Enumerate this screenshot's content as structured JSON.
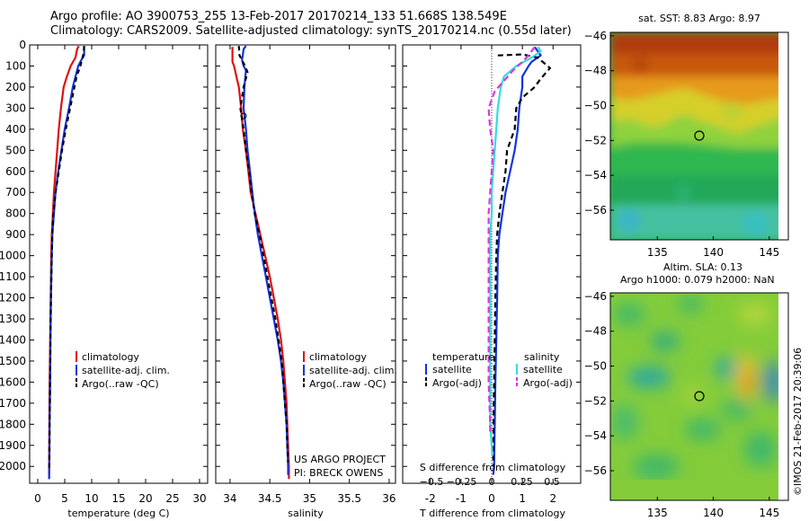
{
  "header": {
    "line1": "Argo profile: AO 3900753_255 13-Feb-2017 20170214_133 51.668S 138.549E",
    "line2": "Climatology: CARS2009. Satellite-adjusted climatology: synTS_20170214.nc (0.55d later)"
  },
  "colors": {
    "climatology": "#dd1111",
    "satellite": "#1133dd",
    "argo": "#000000",
    "cyan": "#33dddd",
    "magenta": "#dd33dd"
  },
  "chart_data": [
    {
      "type": "line",
      "xlabel": "temperature (deg C)",
      "ylabel": "",
      "xlim": [
        -1.5,
        31.5
      ],
      "ylim": [
        2080,
        0
      ],
      "xticks": [
        0,
        5,
        10,
        15,
        20,
        25,
        30
      ],
      "yticks": [
        0,
        100,
        200,
        300,
        400,
        500,
        600,
        700,
        800,
        900,
        1000,
        1100,
        1200,
        1300,
        1400,
        1500,
        1600,
        1700,
        1800,
        1900,
        2000
      ],
      "legend": {
        "items": [
          "climatology",
          "satellite-adj. clim.",
          "Argo(..raw -QC)"
        ],
        "placement": "lower-right"
      },
      "series": [
        {
          "name": "climatology",
          "color": "#dd1111",
          "dash": "",
          "points": [
            [
              7.6,
              5
            ],
            [
              7.3,
              20
            ],
            [
              7.0,
              60
            ],
            [
              6.1,
              100
            ],
            [
              5.4,
              150
            ],
            [
              4.8,
              200
            ],
            [
              4.3,
              300
            ],
            [
              3.9,
              400
            ],
            [
              3.6,
              500
            ],
            [
              3.3,
              600
            ],
            [
              3.0,
              700
            ],
            [
              2.8,
              800
            ],
            [
              2.6,
              900
            ],
            [
              2.5,
              1000
            ],
            [
              2.4,
              1200
            ],
            [
              2.3,
              1400
            ],
            [
              2.2,
              1600
            ],
            [
              2.15,
              1800
            ],
            [
              2.1,
              2000
            ],
            [
              2.1,
              2060
            ]
          ]
        },
        {
          "name": "satellite-adj. clim.",
          "color": "#1133dd",
          "dash": "",
          "points": [
            [
              8.6,
              5
            ],
            [
              8.6,
              50
            ],
            [
              8.0,
              75
            ],
            [
              7.5,
              100
            ],
            [
              7.0,
              150
            ],
            [
              6.5,
              200
            ],
            [
              5.8,
              300
            ],
            [
              5.0,
              400
            ],
            [
              4.4,
              500
            ],
            [
              3.8,
              600
            ],
            [
              3.3,
              700
            ],
            [
              3.0,
              800
            ],
            [
              2.7,
              900
            ],
            [
              2.6,
              1000
            ],
            [
              2.45,
              1200
            ],
            [
              2.35,
              1400
            ],
            [
              2.3,
              1600
            ],
            [
              2.2,
              1800
            ],
            [
              2.15,
              2000
            ],
            [
              2.1,
              2060
            ]
          ]
        },
        {
          "name": "Argo(..raw -QC)",
          "color": "#000000",
          "dash": "5,4",
          "points": [
            [
              8.6,
              5
            ],
            [
              8.5,
              40
            ],
            [
              8.2,
              70
            ],
            [
              7.9,
              100
            ],
            [
              7.2,
              150
            ],
            [
              6.8,
              200
            ],
            [
              6.0,
              300
            ],
            [
              5.2,
              400
            ],
            [
              4.5,
              500
            ],
            [
              3.9,
              600
            ],
            [
              3.3,
              700
            ],
            [
              2.9,
              800
            ],
            [
              2.7,
              900
            ],
            [
              2.6,
              1000
            ],
            [
              2.45,
              1200
            ],
            [
              2.35,
              1400
            ],
            [
              2.3,
              1600
            ],
            [
              2.2,
              1800
            ],
            [
              2.15,
              2000
            ],
            [
              2.1,
              2020
            ]
          ]
        }
      ]
    },
    {
      "type": "line",
      "xlabel": "salinity",
      "ylabel": "",
      "xlim": [
        33.82,
        36.08
      ],
      "ylim": [
        2080,
        0
      ],
      "xticks": [
        34,
        34.5,
        35,
        35.5,
        36
      ],
      "xtick_labels": [
        "34",
        "34.5",
        "35",
        "35.5",
        "36"
      ],
      "legend": {
        "items": [
          "climatology",
          "satellite-adj. clim.",
          "Argo(..raw -QC)"
        ],
        "placement": "lower-right"
      },
      "annotations": [
        "US ARGO PROJECT",
        "PI: BRECK OWENS"
      ],
      "series": [
        {
          "name": "climatology",
          "color": "#dd1111",
          "dash": "",
          "points": [
            [
              34.03,
              10
            ],
            [
              34.03,
              80
            ],
            [
              34.05,
              100
            ],
            [
              34.08,
              150
            ],
            [
              34.11,
              200
            ],
            [
              34.14,
              300
            ],
            [
              34.16,
              400
            ],
            [
              34.2,
              500
            ],
            [
              34.23,
              600
            ],
            [
              34.26,
              700
            ],
            [
              34.32,
              800
            ],
            [
              34.38,
              900
            ],
            [
              34.44,
              1000
            ],
            [
              34.5,
              1100
            ],
            [
              34.55,
              1200
            ],
            [
              34.6,
              1300
            ],
            [
              34.64,
              1400
            ],
            [
              34.67,
              1500
            ],
            [
              34.69,
              1600
            ],
            [
              34.71,
              1700
            ],
            [
              34.72,
              1800
            ],
            [
              34.73,
              1900
            ],
            [
              34.74,
              2000
            ],
            [
              34.74,
              2060
            ]
          ]
        },
        {
          "name": "satellite-adj. clim.",
          "color": "#1133dd",
          "dash": "",
          "points": [
            [
              34.2,
              5
            ],
            [
              34.17,
              20
            ],
            [
              34.16,
              50
            ],
            [
              34.15,
              70
            ],
            [
              34.17,
              100
            ],
            [
              34.2,
              120
            ],
            [
              34.18,
              200
            ],
            [
              34.17,
              300
            ],
            [
              34.2,
              400
            ],
            [
              34.22,
              500
            ],
            [
              34.25,
              600
            ],
            [
              34.28,
              700
            ],
            [
              34.31,
              800
            ],
            [
              34.35,
              900
            ],
            [
              34.4,
              1000
            ],
            [
              34.45,
              1100
            ],
            [
              34.5,
              1200
            ],
            [
              34.55,
              1300
            ],
            [
              34.6,
              1400
            ],
            [
              34.64,
              1500
            ],
            [
              34.67,
              1600
            ],
            [
              34.69,
              1700
            ],
            [
              34.71,
              1800
            ],
            [
              34.72,
              1900
            ],
            [
              34.73,
              2000
            ],
            [
              34.73,
              2040
            ]
          ]
        },
        {
          "name": "Argo(..raw -QC)",
          "color": "#000000",
          "dash": "5,4",
          "points": [
            [
              34.11,
              5
            ],
            [
              34.12,
              50
            ],
            [
              34.16,
              80
            ],
            [
              34.19,
              100
            ],
            [
              34.22,
              130
            ],
            [
              34.17,
              200
            ],
            [
              34.13,
              300
            ],
            [
              34.17,
              400
            ],
            [
              34.2,
              500
            ],
            [
              34.24,
              600
            ],
            [
              34.27,
              700
            ],
            [
              34.31,
              800
            ],
            [
              34.37,
              900
            ],
            [
              34.42,
              1000
            ],
            [
              34.47,
              1100
            ],
            [
              34.52,
              1200
            ],
            [
              34.57,
              1300
            ],
            [
              34.61,
              1400
            ],
            [
              34.65,
              1500
            ],
            [
              34.67,
              1600
            ],
            [
              34.69,
              1700
            ],
            [
              34.71,
              1800
            ],
            [
              34.72,
              1900
            ],
            [
              34.73,
              1980
            ]
          ]
        }
      ]
    },
    {
      "type": "line",
      "xlabel": "T difference from climatology",
      "secondary_xlabel": "S difference from climatology",
      "xlim": [
        -2.9,
        2.9
      ],
      "ylim": [
        2080,
        0
      ],
      "xticks": [
        -2,
        -1,
        0,
        1,
        2
      ],
      "secondary_xticks": [
        -0.5,
        -0.25,
        0,
        0.25,
        0.5
      ],
      "secondary_xtick_labels": [
        "−0.5",
        "−0.25",
        "0",
        "0.25",
        "0.5"
      ],
      "legend": {
        "headers": [
          "temperature",
          "salinity"
        ],
        "items": [
          "satellite",
          "Argo(-adj)",
          "satellite",
          "Argo(-adj)"
        ],
        "placement": "lower-center"
      },
      "series": [
        {
          "name": "satellite",
          "group": "temperature",
          "color": "#1133dd",
          "dash": "",
          "points": [
            [
              1.4,
              10
            ],
            [
              1.6,
              50
            ],
            [
              1.3,
              80
            ],
            [
              1.2,
              100
            ],
            [
              1.0,
              150
            ],
            [
              1.0,
              200
            ],
            [
              0.9,
              300
            ],
            [
              0.85,
              400
            ],
            [
              0.75,
              500
            ],
            [
              0.6,
              600
            ],
            [
              0.45,
              700
            ],
            [
              0.35,
              800
            ],
            [
              0.25,
              900
            ],
            [
              0.2,
              1000
            ],
            [
              0.18,
              1200
            ],
            [
              0.15,
              1400
            ],
            [
              0.12,
              1600
            ],
            [
              0.1,
              1800
            ],
            [
              0.08,
              2000
            ],
            [
              0.05,
              2040
            ]
          ]
        },
        {
          "name": "Argo(-adj)",
          "group": "temperature",
          "color": "#000000",
          "dash": "6,4",
          "points": [
            [
              0.2,
              50
            ],
            [
              1.0,
              45
            ],
            [
              1.5,
              60
            ],
            [
              1.9,
              110
            ],
            [
              1.6,
              160
            ],
            [
              1.4,
              200
            ],
            [
              1.0,
              250
            ],
            [
              0.8,
              300
            ],
            [
              0.75,
              400
            ],
            [
              0.5,
              500
            ],
            [
              0.45,
              600
            ],
            [
              0.35,
              700
            ],
            [
              0.25,
              800
            ],
            [
              0.18,
              900
            ],
            [
              0.15,
              1000
            ],
            [
              0.12,
              1200
            ],
            [
              0.1,
              1400
            ],
            [
              0.08,
              1600
            ],
            [
              0.06,
              1800
            ],
            [
              0.05,
              2000
            ]
          ]
        },
        {
          "name": "satellite",
          "group": "salinity",
          "color": "#33dddd",
          "dash": "",
          "points": [
            [
              1.5,
              10
            ],
            [
              1.6,
              30
            ],
            [
              1.3,
              60
            ],
            [
              0.8,
              100
            ],
            [
              0.4,
              150
            ],
            [
              0.3,
              200
            ],
            [
              0.2,
              300
            ],
            [
              0.15,
              400
            ],
            [
              0.1,
              500
            ],
            [
              0.05,
              600
            ],
            [
              0.0,
              700
            ],
            [
              0.0,
              800
            ],
            [
              -0.05,
              900
            ],
            [
              -0.05,
              1000
            ],
            [
              -0.05,
              1200
            ],
            [
              -0.05,
              1400
            ],
            [
              -0.05,
              1600
            ],
            [
              -0.05,
              1800
            ],
            [
              0.0,
              1900
            ],
            [
              0.02,
              1950
            ]
          ]
        },
        {
          "name": "Argo(-adj)",
          "group": "salinity",
          "color": "#dd33dd",
          "dash": "7,4",
          "points": [
            [
              1.4,
              10
            ],
            [
              1.2,
              50
            ],
            [
              1.0,
              80
            ],
            [
              0.7,
              120
            ],
            [
              0.4,
              170
            ],
            [
              0.1,
              220
            ],
            [
              -0.1,
              300
            ],
            [
              -0.05,
              400
            ],
            [
              0.05,
              500
            ],
            [
              0.0,
              600
            ],
            [
              -0.05,
              700
            ],
            [
              -0.1,
              800
            ],
            [
              -0.1,
              900
            ],
            [
              -0.1,
              1000
            ],
            [
              -0.1,
              1200
            ],
            [
              -0.1,
              1400
            ],
            [
              -0.1,
              1600
            ],
            [
              -0.05,
              1800
            ],
            [
              -0.05,
              1850
            ]
          ]
        }
      ]
    },
    {
      "type": "heatmap",
      "title": "sat. SST: 8.83 Argo: 8.97",
      "xticks": [
        135,
        140,
        145
      ],
      "yticks": [
        -46,
        -48,
        -50,
        -52,
        -54,
        -56
      ],
      "ytick_labels": [
        "−46",
        "−48",
        "−50",
        "−52",
        "−54",
        "−56"
      ],
      "xlim": [
        130.8,
        146.7
      ],
      "ylim": [
        -57.7,
        -45.8
      ],
      "marker": {
        "lon": 138.549,
        "lat": -51.668
      },
      "colormap": "jet"
    },
    {
      "type": "heatmap",
      "title_lines": [
        "Altim. SLA: 0.13",
        "Argo h1000: 0.079 h2000: NaN"
      ],
      "xticks": [
        135,
        140,
        145
      ],
      "yticks": [
        -46,
        -48,
        -50,
        -52,
        -54,
        -56
      ],
      "ytick_labels": [
        "−46",
        "−48",
        "−50",
        "−52",
        "−54",
        "−56"
      ],
      "xlim": [
        130.8,
        146.7
      ],
      "ylim": [
        -57.7,
        -45.8
      ],
      "marker": {
        "lon": 138.549,
        "lat": -51.668
      },
      "colormap": "jet"
    }
  ],
  "footer": {
    "credit": "©IMOS 21-Feb-2017 20:39:06"
  }
}
